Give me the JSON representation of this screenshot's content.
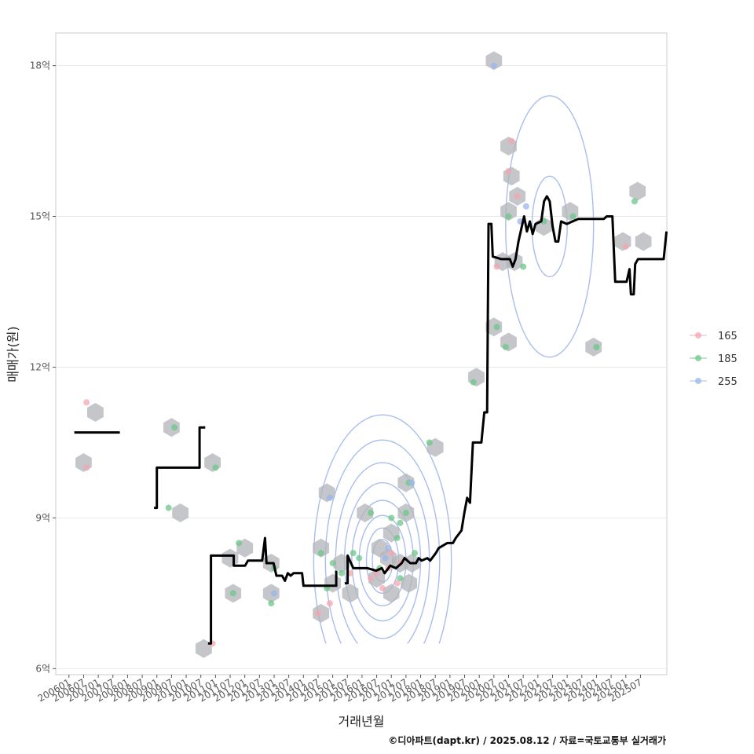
{
  "chart_data": {
    "type": "scatter",
    "xlabel": "거래년월",
    "ylabel": "매매가(원)",
    "caption": "©디아파트(dapt.kr) / 2025.08.12 / 자료=국토교통부 실거래가",
    "x_ticks": [
      "200601",
      "200607",
      "200701",
      "200707",
      "200801",
      "200807",
      "200901",
      "200907",
      "201001",
      "201007",
      "201101",
      "201107",
      "201201",
      "201207",
      "201301",
      "201307",
      "201401",
      "201407",
      "201501",
      "201507",
      "201601",
      "201607",
      "201701",
      "201707",
      "201801",
      "201807",
      "201901",
      "201907",
      "202001",
      "202007",
      "202101",
      "202107",
      "202201",
      "202207",
      "202301",
      "202307",
      "202401",
      "202407",
      "202501",
      "202507"
    ],
    "y_ticks": [
      {
        "value": 6,
        "label": "6억"
      },
      {
        "value": 9,
        "label": "9억"
      },
      {
        "value": 12,
        "label": "12억"
      },
      {
        "value": 15,
        "label": "15억"
      },
      {
        "value": 18,
        "label": "18억"
      }
    ],
    "xlim": [
      2005.55,
      2026.4
    ],
    "ylim": [
      5.88,
      18.65
    ],
    "grid": "horizontal",
    "legend": {
      "position": "right",
      "items": [
        {
          "label": "165",
          "color": "#f4a6b0"
        },
        {
          "label": "185",
          "color": "#6cc78a"
        },
        {
          "label": "255",
          "color": "#9bb5ea"
        }
      ]
    },
    "colors": {
      "hex_fill": "#b4b6ba",
      "hex_fill_light": "#c9d4e4",
      "contour": "#a9bdee",
      "trend_line": "#000000",
      "grid": "#e6e8ec",
      "panel_border": "#cccccc"
    },
    "series": [
      {
        "name": "165",
        "points": [
          [
            2006.6,
            11.3
          ],
          [
            2006.6,
            10.0
          ],
          [
            2010.9,
            6.5
          ],
          [
            2014.5,
            7.1
          ],
          [
            2014.9,
            7.3
          ],
          [
            2015.6,
            7.9
          ],
          [
            2016.3,
            7.8
          ],
          [
            2016.7,
            7.6
          ],
          [
            2017.0,
            8.3
          ],
          [
            2016.9,
            8.0
          ],
          [
            2017.2,
            7.7
          ],
          [
            2017.3,
            8.1
          ],
          [
            2020.6,
            14.0
          ],
          [
            2021.0,
            15.9
          ],
          [
            2021.1,
            16.5
          ],
          [
            2021.3,
            15.4
          ],
          [
            2025.0,
            14.4
          ],
          [
            2016.5,
            7.9
          ]
        ]
      },
      {
        "name": "185",
        "points": [
          [
            2009.4,
            9.2
          ],
          [
            2009.6,
            10.8
          ],
          [
            2011.0,
            10.0
          ],
          [
            2011.6,
            7.5
          ],
          [
            2011.8,
            8.5
          ],
          [
            2012.9,
            7.3
          ],
          [
            2013.0,
            8.0
          ],
          [
            2014.6,
            8.3
          ],
          [
            2014.8,
            7.6
          ],
          [
            2015.0,
            8.1
          ],
          [
            2015.3,
            7.9
          ],
          [
            2015.7,
            8.3
          ],
          [
            2015.9,
            8.2
          ],
          [
            2016.3,
            9.1
          ],
          [
            2016.6,
            8.0
          ],
          [
            2017.0,
            9.0
          ],
          [
            2017.2,
            8.6
          ],
          [
            2017.3,
            8.9
          ],
          [
            2017.5,
            9.1
          ],
          [
            2017.6,
            9.7
          ],
          [
            2017.8,
            8.3
          ],
          [
            2018.3,
            10.5
          ],
          [
            2019.8,
            11.7
          ],
          [
            2020.6,
            12.8
          ],
          [
            2020.9,
            12.4
          ],
          [
            2021.0,
            15.0
          ],
          [
            2021.5,
            14.0
          ],
          [
            2022.2,
            14.9
          ],
          [
            2023.2,
            15.0
          ],
          [
            2024.0,
            12.4
          ],
          [
            2025.3,
            15.3
          ],
          [
            2017.3,
            7.8
          ]
        ]
      },
      {
        "name": "255",
        "points": [
          [
            2014.9,
            9.4
          ],
          [
            2016.8,
            8.2
          ],
          [
            2017.7,
            9.7
          ],
          [
            2020.5,
            18.0
          ],
          [
            2021.4,
            14.9
          ],
          [
            2021.6,
            15.2
          ],
          [
            2016.9,
            8.4
          ],
          [
            2013.0,
            7.5
          ]
        ]
      }
    ],
    "hexbins": [
      [
        2006.9,
        11.1
      ],
      [
        2006.5,
        10.1
      ],
      [
        2009.5,
        10.8
      ],
      [
        2009.8,
        9.1
      ],
      [
        2010.9,
        10.1
      ],
      [
        2010.6,
        6.4
      ],
      [
        2011.6,
        7.5
      ],
      [
        2011.5,
        8.2
      ],
      [
        2012.0,
        8.4
      ],
      [
        2012.9,
        7.5
      ],
      [
        2012.9,
        8.1
      ],
      [
        2014.8,
        9.5
      ],
      [
        2014.6,
        8.4
      ],
      [
        2014.6,
        7.1
      ],
      [
        2015.0,
        7.7
      ],
      [
        2015.3,
        8.1
      ],
      [
        2015.6,
        7.5
      ],
      [
        2016.1,
        9.1
      ],
      [
        2016.6,
        8.4
      ],
      [
        2016.5,
        7.8
      ],
      [
        2017.0,
        7.5
      ],
      [
        2017.0,
        8.7
      ],
      [
        2017.3,
        8.1
      ],
      [
        2017.5,
        9.1
      ],
      [
        2017.6,
        7.7
      ],
      [
        2017.7,
        8.1
      ],
      [
        2017.5,
        9.7
      ],
      [
        2018.5,
        10.4
      ],
      [
        2019.9,
        11.8
      ],
      [
        2020.5,
        12.8
      ],
      [
        2020.5,
        18.1
      ],
      [
        2020.8,
        14.1
      ],
      [
        2021.0,
        15.1
      ],
      [
        2021.1,
        15.8
      ],
      [
        2021.3,
        15.4
      ],
      [
        2021.0,
        16.4
      ],
      [
        2021.2,
        14.1
      ],
      [
        2021.0,
        12.5
      ],
      [
        2022.2,
        14.8
      ],
      [
        2023.1,
        15.1
      ],
      [
        2023.9,
        12.4
      ],
      [
        2024.9,
        14.5
      ],
      [
        2025.4,
        15.5
      ],
      [
        2025.6,
        14.5
      ],
      [
        2016.9,
        8.2
      ]
    ],
    "trend_line": [
      [
        [
          2006.2,
          10.7
        ],
        [
          2007.8,
          10.7
        ]
      ],
      [
        [
          2009.0,
          9.2
        ],
        [
          2009.1,
          9.2
        ],
        [
          2009.1,
          10.0
        ],
        [
          2010.6,
          10.0
        ],
        [
          2010.6,
          10.8
        ],
        [
          2010.8,
          10.8
        ]
      ],
      [
        [
          2010.9,
          6.5
        ],
        [
          2011.0,
          6.5
        ],
        [
          2011.0,
          8.25
        ],
        [
          2011.8,
          8.25
        ],
        [
          2011.8,
          8.05
        ],
        [
          2012.2,
          8.05
        ],
        [
          2012.3,
          8.15
        ],
        [
          2012.8,
          8.15
        ],
        [
          2012.9,
          8.6
        ],
        [
          2012.95,
          8.1
        ],
        [
          2013.2,
          8.1
        ],
        [
          2013.3,
          7.85
        ],
        [
          2013.5,
          7.85
        ],
        [
          2013.6,
          7.75
        ],
        [
          2013.7,
          7.9
        ],
        [
          2013.8,
          7.85
        ],
        [
          2013.9,
          7.9
        ],
        [
          2014.2,
          7.9
        ],
        [
          2014.25,
          7.65
        ],
        [
          2015.4,
          7.65
        ],
        [
          2015.4,
          7.95
        ]
      ],
      [
        [
          2015.7,
          7.7
        ],
        [
          2015.8,
          7.7
        ],
        [
          2015.8,
          8.25
        ],
        [
          2016.0,
          8.0
        ],
        [
          2016.5,
          8.0
        ],
        [
          2016.8,
          7.95
        ],
        [
          2017.0,
          8.0
        ],
        [
          2017.1,
          7.9
        ],
        [
          2017.3,
          8.05
        ],
        [
          2017.5,
          8.0
        ],
        [
          2017.7,
          8.1
        ],
        [
          2017.8,
          8.2
        ],
        [
          2018.0,
          8.1
        ],
        [
          2018.2,
          8.1
        ],
        [
          2018.3,
          8.2
        ],
        [
          2018.4,
          8.15
        ],
        [
          2018.6,
          8.2
        ],
        [
          2018.7,
          8.15
        ],
        [
          2018.9,
          8.3
        ],
        [
          2019.0,
          8.4
        ],
        [
          2019.3,
          8.5
        ],
        [
          2019.5,
          8.5
        ],
        [
          2019.6,
          8.6
        ],
        [
          2019.8,
          8.75
        ],
        [
          2019.9,
          9.1
        ],
        [
          2020.0,
          9.4
        ],
        [
          2020.1,
          9.3
        ],
        [
          2020.2,
          10.5
        ],
        [
          2020.5,
          10.5
        ],
        [
          2020.6,
          11.1
        ],
        [
          2020.7,
          11.1
        ],
        [
          2020.75,
          14.85
        ],
        [
          2020.85,
          14.85
        ],
        [
          2020.9,
          14.2
        ],
        [
          2021.2,
          14.15
        ],
        [
          2021.5,
          14.15
        ],
        [
          2021.6,
          14.0
        ],
        [
          2021.7,
          14.15
        ],
        [
          2021.8,
          14.5
        ],
        [
          2021.9,
          14.75
        ],
        [
          2022.0,
          15.0
        ],
        [
          2022.1,
          14.7
        ],
        [
          2022.2,
          14.9
        ],
        [
          2022.3,
          14.65
        ],
        [
          2022.4,
          14.85
        ],
        [
          2022.6,
          14.9
        ],
        [
          2022.7,
          15.3
        ],
        [
          2022.8,
          15.4
        ],
        [
          2022.9,
          15.3
        ],
        [
          2023.0,
          14.8
        ],
        [
          2023.1,
          14.5
        ],
        [
          2023.2,
          14.5
        ],
        [
          2023.3,
          14.9
        ],
        [
          2023.5,
          14.85
        ],
        [
          2023.7,
          14.9
        ],
        [
          2023.9,
          14.95
        ],
        [
          2024.8,
          14.95
        ],
        [
          2024.9,
          15.0
        ],
        [
          2025.1,
          15.0
        ],
        [
          2025.2,
          13.7
        ],
        [
          2025.6,
          13.7
        ],
        [
          2025.7,
          13.95
        ],
        [
          2025.75,
          13.45
        ],
        [
          2025.85,
          13.45
        ],
        [
          2025.9,
          14.05
        ],
        [
          2026.0,
          14.15
        ],
        [
          2026.9,
          14.15
        ],
        [
          2027.0,
          14.7
        ]
      ]
    ],
    "contours": [
      {
        "cx": 2016.7,
        "cy": 8.15,
        "levels": [
          [
            0.35,
            0.42
          ],
          [
            0.55,
            0.65
          ],
          [
            0.8,
            0.9
          ],
          [
            1.05,
            1.2
          ],
          [
            1.3,
            1.55
          ],
          [
            1.6,
            1.95
          ],
          [
            1.95,
            2.4
          ],
          [
            2.35,
            2.9
          ]
        ]
      },
      {
        "cx": 2022.4,
        "cy": 14.8,
        "levels": [
          [
            0.6,
            1.0
          ],
          [
            1.5,
            2.6
          ]
        ]
      }
    ]
  }
}
